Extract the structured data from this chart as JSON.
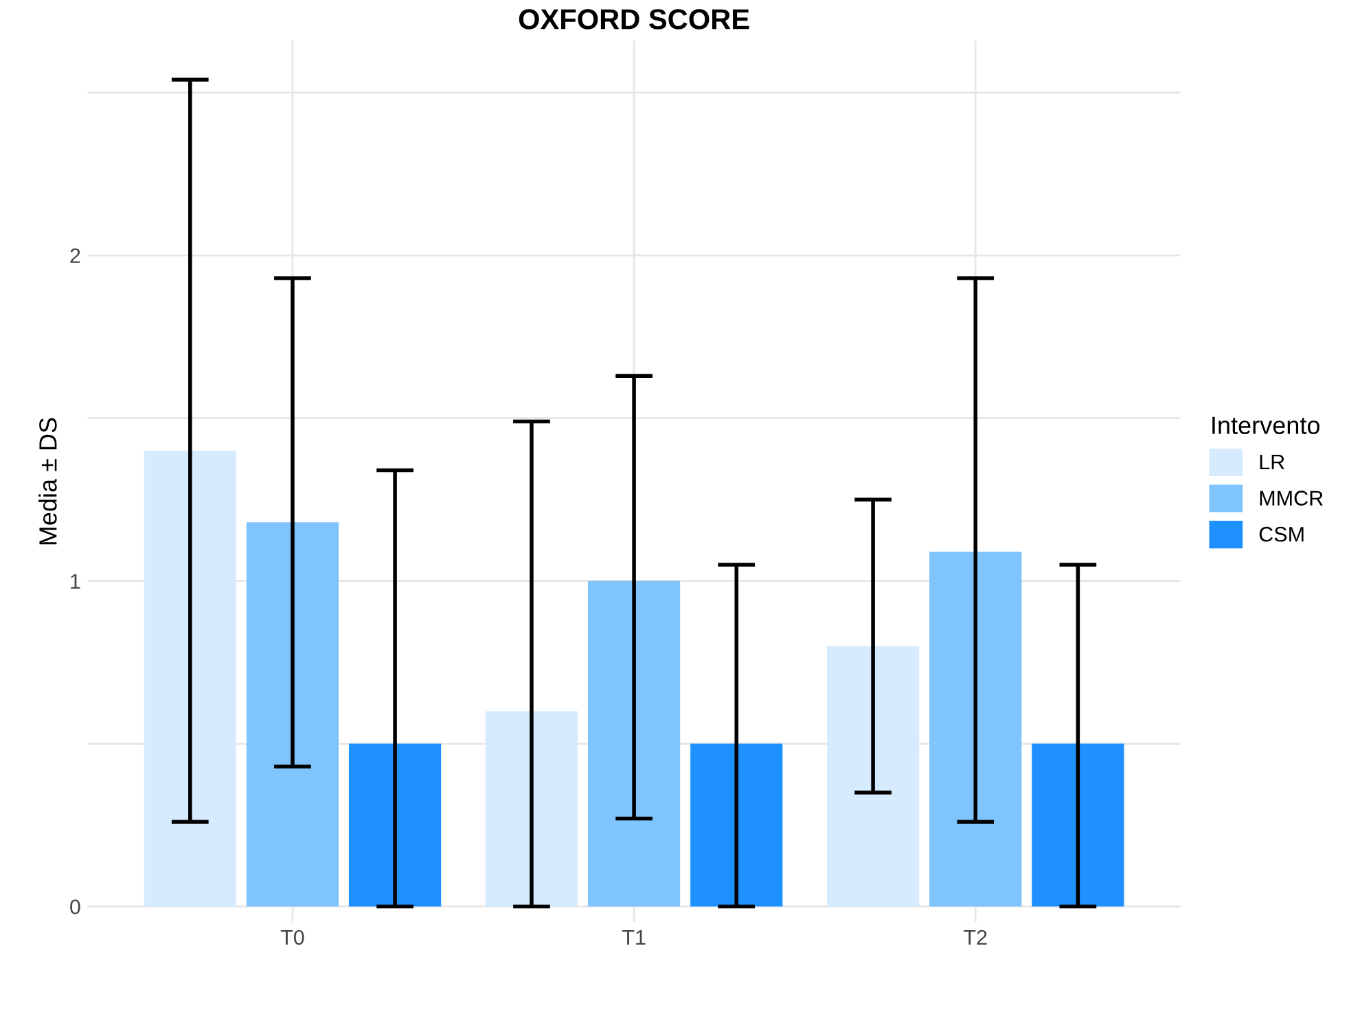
{
  "chart_data": {
    "type": "bar",
    "title": "OXFORD SCORE",
    "ylabel": "Media ± DS",
    "legend_title": "Intervento",
    "categories": [
      "T0",
      "T1",
      "T2"
    ],
    "series": [
      {
        "name": "LR",
        "color": "#d6ebfd",
        "values": [
          1.4,
          0.6,
          0.8
        ],
        "errors": [
          [
            0.26,
            2.54
          ],
          [
            0,
            1.49
          ],
          [
            0.35,
            1.25
          ]
        ]
      },
      {
        "name": "MMCR",
        "color": "#7fc4fc",
        "values": [
          1.18,
          1.0,
          1.09
        ],
        "errors": [
          [
            0.43,
            1.93
          ],
          [
            0.27,
            1.63
          ],
          [
            0.26,
            1.93
          ]
        ]
      },
      {
        "name": "CSM",
        "color": "#1e90ff",
        "values": [
          0.5,
          0.5,
          0.5
        ],
        "errors": [
          [
            0,
            1.34
          ],
          [
            0,
            1.05
          ],
          [
            0,
            1.05
          ]
        ]
      }
    ],
    "ylim": [
      -0.05,
      2.66
    ],
    "yticks": [
      0,
      {
        "value": 0.5,
        "label": null
      },
      1,
      {
        "value": 1.5,
        "label": null
      },
      2,
      {
        "value": 2.5,
        "label": null
      }
    ],
    "grid": true,
    "legend": "right"
  }
}
